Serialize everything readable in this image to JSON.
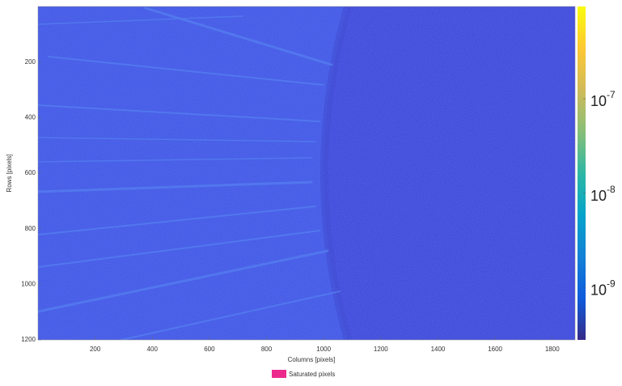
{
  "chart_data": {
    "type": "image",
    "xlabel": "Columns [pixels]",
    "ylabel": "Rows [pixels]",
    "xlim": [
      0,
      1880
    ],
    "xticks": [
      200,
      400,
      600,
      800,
      1000,
      1200,
      1400,
      1600,
      1800
    ],
    "ylim": [
      1200,
      0
    ],
    "yticks": [
      200,
      400,
      600,
      800,
      1000,
      1200
    ],
    "colorbar": {
      "log_scale": true,
      "lim": [
        2.8e-10,
        9.5e-07
      ],
      "ticks": [
        {
          "value": 1e-09,
          "label": "10",
          "exponent": "-9"
        },
        {
          "value": 1e-08,
          "label": "10",
          "exponent": "-8"
        },
        {
          "value": 1e-07,
          "label": "10",
          "exponent": "-7"
        }
      ],
      "colormap": [
        "#352a87",
        "#0f5cdd",
        "#1481d6",
        "#06a4ca",
        "#2eb7a4",
        "#87bf77",
        "#d1bb59",
        "#fec832",
        "#f9fb0e"
      ]
    },
    "legend": {
      "name": "Saturated pixels",
      "color": "#ec2a8c",
      "position": "bottom"
    }
  }
}
